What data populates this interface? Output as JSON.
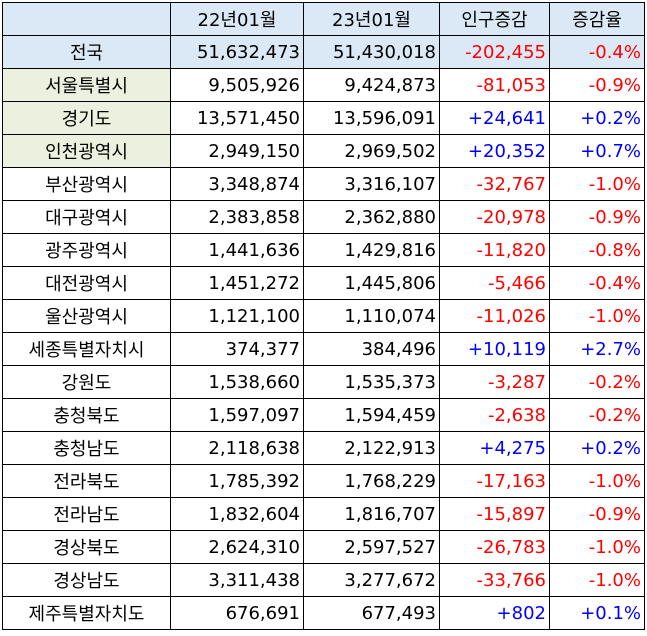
{
  "header": {
    "col0": "",
    "col1": "22년01월",
    "col2": "23년01월",
    "col3": "인구증감",
    "col4": "증감율"
  },
  "rows": [
    {
      "region": "전국",
      "y22": "51,632,473",
      "y23": "51,430,018",
      "change": "-202,455",
      "rate": "-0.4%"
    },
    {
      "region": "서울특별시",
      "y22": "9,505,926",
      "y23": "9,424,873",
      "change": "-81,053",
      "rate": "-0.9%"
    },
    {
      "region": "경기도",
      "y22": "13,571,450",
      "y23": "13,596,091",
      "change": "+24,641",
      "rate": "+0.2%"
    },
    {
      "region": "인천광역시",
      "y22": "2,949,150",
      "y23": "2,969,502",
      "change": "+20,352",
      "rate": "+0.7%"
    },
    {
      "region": "부산광역시",
      "y22": "3,348,874",
      "y23": "3,316,107",
      "change": "-32,767",
      "rate": "-1.0%"
    },
    {
      "region": "대구광역시",
      "y22": "2,383,858",
      "y23": "2,362,880",
      "change": "-20,978",
      "rate": "-0.9%"
    },
    {
      "region": "광주광역시",
      "y22": "1,441,636",
      "y23": "1,429,816",
      "change": "-11,820",
      "rate": "-0.8%"
    },
    {
      "region": "대전광역시",
      "y22": "1,451,272",
      "y23": "1,445,806",
      "change": "-5,466",
      "rate": "-0.4%"
    },
    {
      "region": "울산광역시",
      "y22": "1,121,100",
      "y23": "1,110,074",
      "change": "-11,026",
      "rate": "-1.0%"
    },
    {
      "region": "세종특별자치시",
      "y22": "374,377",
      "y23": "384,496",
      "change": "+10,119",
      "rate": "+2.7%"
    },
    {
      "region": "강원도",
      "y22": "1,538,660",
      "y23": "1,535,373",
      "change": "-3,287",
      "rate": "-0.2%"
    },
    {
      "region": "충청북도",
      "y22": "1,597,097",
      "y23": "1,594,459",
      "change": "-2,638",
      "rate": "-0.2%"
    },
    {
      "region": "충청남도",
      "y22": "2,118,638",
      "y23": "2,122,913",
      "change": "+4,275",
      "rate": "+0.2%"
    },
    {
      "region": "전라북도",
      "y22": "1,785,392",
      "y23": "1,768,229",
      "change": "-17,163",
      "rate": "-1.0%"
    },
    {
      "region": "전라남도",
      "y22": "1,832,604",
      "y23": "1,816,707",
      "change": "-15,897",
      "rate": "-0.9%"
    },
    {
      "region": "경상북도",
      "y22": "2,624,310",
      "y23": "2,597,527",
      "change": "-26,783",
      "rate": "-1.0%"
    },
    {
      "region": "경상남도",
      "y22": "3,311,438",
      "y23": "3,277,672",
      "change": "-33,766",
      "rate": "-1.0%"
    },
    {
      "region": "제주특별자치도",
      "y22": "676,691",
      "y23": "677,493",
      "change": "+802",
      "rate": "+0.1%"
    }
  ],
  "colors": {
    "header_fill": "#dbe9f6",
    "metro_fill": "#ebf1de",
    "increase": "#0000ff",
    "decrease": "#ff0000"
  }
}
